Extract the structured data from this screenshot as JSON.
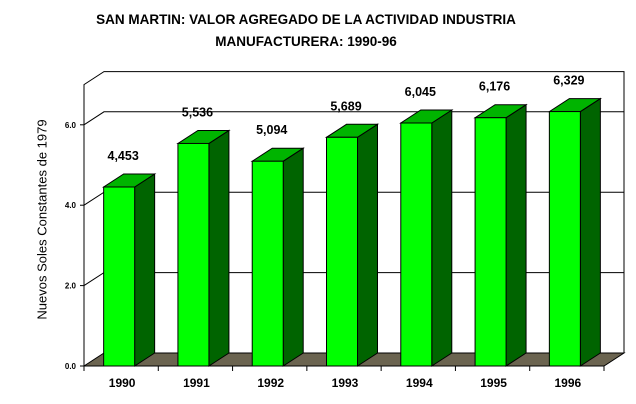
{
  "chart_data": {
    "type": "bar",
    "title": "SAN MARTIN: VALOR AGREGADO DE LA ACTIVIDAD INDUSTRIA",
    "subtitle": "MANUFACTURERA: 1990-96",
    "xlabel": "",
    "ylabel": "Nuevos Soles Constantes de 1979",
    "categories": [
      "1990",
      "1991",
      "1992",
      "1993",
      "1994",
      "1995",
      "1996"
    ],
    "values": [
      4453,
      5536,
      5094,
      5689,
      6045,
      6176,
      6329
    ],
    "value_labels": [
      "4,453",
      "5,536",
      "5,094",
      "5,689",
      "6,045",
      "6,176",
      "6,329"
    ],
    "ylim": [
      0,
      7000
    ],
    "yticks": [
      0,
      2000,
      4000,
      6000
    ],
    "ytick_labels": [
      "0.0",
      "2.0",
      "4.0",
      "6.0"
    ],
    "grid": true,
    "legend": "none",
    "colors": {
      "bar_front": "#00ff00",
      "bar_side": "#006400",
      "bar_top": "#00b400",
      "floor": "#6b6450",
      "wall": "#ffffff",
      "grid": "#000000"
    }
  }
}
